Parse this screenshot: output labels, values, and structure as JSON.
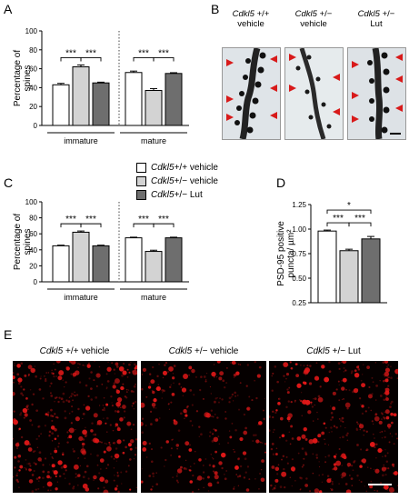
{
  "panel_labels": {
    "A": "A",
    "B": "B",
    "C": "C",
    "D": "D",
    "E": "E"
  },
  "colors": {
    "vehicle_wt": "#ffffff",
    "vehicle_het": "#d3d3d3",
    "lut_het": "#6e6e6e",
    "sig": "#000000",
    "puncta": "#e01818"
  },
  "legend": {
    "items": [
      {
        "gene": "Cdkl5",
        "rest": " +/+ vehicle",
        "color": "#ffffff"
      },
      {
        "gene": "Cdkl5",
        "rest": " +/− vehicle",
        "color": "#d3d3d3"
      },
      {
        "gene": "Cdkl5",
        "rest": " +/− Lut",
        "color": "#6e6e6e"
      }
    ]
  },
  "panel_b": {
    "labels": [
      {
        "gene": "Cdkl5",
        "geno": " +/+",
        "treat": "vehicle"
      },
      {
        "gene": "Cdkl5",
        "geno": " +/−",
        "treat": "vehicle"
      },
      {
        "gene": "Cdkl5",
        "geno": " +/−",
        "treat": "Lut"
      }
    ]
  },
  "panel_e": {
    "labels": [
      {
        "gene": "Cdkl5",
        "rest": " +/+ vehicle"
      },
      {
        "gene": "Cdkl5",
        "rest": " +/− vehicle"
      },
      {
        "gene": "Cdkl5",
        "rest": " +/− Lut"
      }
    ]
  },
  "chart_data": [
    {
      "id": "A",
      "type": "bar",
      "ylabel": "Percentage of spines",
      "ylim": [
        0,
        100
      ],
      "yticks": [
        0,
        20,
        40,
        60,
        80,
        100
      ],
      "groups": [
        "immature",
        "mature"
      ],
      "series": [
        {
          "values": [
            43,
            56
          ],
          "errors": [
            1.5,
            1.5
          ],
          "color": "#ffffff"
        },
        {
          "values": [
            62,
            37
          ],
          "errors": [
            2.0,
            2.0
          ],
          "color": "#d3d3d3"
        },
        {
          "values": [
            45,
            55
          ],
          "errors": [
            0.8,
            0.8
          ],
          "color": "#6e6e6e"
        }
      ],
      "significance": [
        {
          "group": 0,
          "from": 0,
          "to": 1,
          "label": "***"
        },
        {
          "group": 0,
          "from": 1,
          "to": 2,
          "label": "***"
        },
        {
          "group": 1,
          "from": 0,
          "to": 1,
          "label": "***"
        },
        {
          "group": 1,
          "from": 1,
          "to": 2,
          "label": "***"
        }
      ]
    },
    {
      "id": "C",
      "type": "bar",
      "ylabel": "Percentage of spines",
      "ylim": [
        0,
        100
      ],
      "yticks": [
        0,
        20,
        40,
        60,
        80,
        100
      ],
      "groups": [
        "immature",
        "mature"
      ],
      "series": [
        {
          "values": [
            45,
            55
          ],
          "errors": [
            0.8,
            0.8
          ],
          "color": "#ffffff"
        },
        {
          "values": [
            62,
            38
          ],
          "errors": [
            1.5,
            1.5
          ],
          "color": "#d3d3d3"
        },
        {
          "values": [
            45,
            55
          ],
          "errors": [
            0.8,
            0.8
          ],
          "color": "#6e6e6e"
        }
      ],
      "significance": [
        {
          "group": 0,
          "from": 0,
          "to": 1,
          "label": "***"
        },
        {
          "group": 0,
          "from": 1,
          "to": 2,
          "label": "***"
        },
        {
          "group": 1,
          "from": 0,
          "to": 1,
          "label": "***"
        },
        {
          "group": 1,
          "from": 1,
          "to": 2,
          "label": "***"
        }
      ]
    },
    {
      "id": "D",
      "type": "bar",
      "ylabel": "PSD-95 positive puncta/ µm²",
      "ylim": [
        0.25,
        1.25
      ],
      "yticks": [
        "0.25",
        "0.50",
        "0.75",
        "1.00",
        "1.25"
      ],
      "groups": [
        ""
      ],
      "series": [
        {
          "values": [
            0.98
          ],
          "errors": [
            0.01
          ],
          "color": "#ffffff"
        },
        {
          "values": [
            0.78
          ],
          "errors": [
            0.015
          ],
          "color": "#d3d3d3"
        },
        {
          "values": [
            0.9
          ],
          "errors": [
            0.025
          ],
          "color": "#6e6e6e"
        }
      ],
      "significance": [
        {
          "group": 0,
          "from": 0,
          "to": 1,
          "label": "***"
        },
        {
          "group": 0,
          "from": 1,
          "to": 2,
          "label": "***"
        },
        {
          "group": 0,
          "from": 0,
          "to": 2,
          "label": "*"
        }
      ]
    }
  ]
}
